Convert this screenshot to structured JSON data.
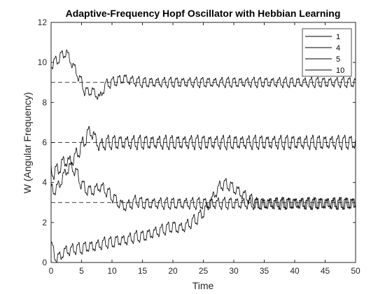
{
  "chart_data": {
    "type": "line",
    "title": "Adaptive-Frequency Hopf Oscillator with Hebbian Learning",
    "xlabel": "Time",
    "ylabel": "W (Angular Frequency)",
    "xlim": [
      0,
      50
    ],
    "ylim": [
      0,
      12
    ],
    "xticks": [
      "0",
      "5",
      "10",
      "15",
      "20",
      "25",
      "30",
      "35",
      "40",
      "45",
      "50"
    ],
    "yticks": [
      "0",
      "2",
      "4",
      "6",
      "8",
      "10",
      "12"
    ],
    "grid": false,
    "legend": {
      "placement": "top-right",
      "entries": [
        "1",
        "4",
        "5",
        "10"
      ]
    },
    "reference_lines": [
      {
        "y": 3,
        "style": "dashed"
      },
      {
        "y": 6,
        "style": "dashed"
      },
      {
        "y": 9,
        "style": "dashed"
      }
    ],
    "series": [
      {
        "name": "1",
        "color": "#000000",
        "oscillation": {
          "amplitude": 0.25,
          "period": 1.05
        },
        "x": [
          0,
          0.5,
          1,
          1.5,
          2,
          2.5,
          3,
          4,
          5,
          6,
          7,
          8,
          9,
          10,
          11,
          12,
          13,
          14,
          15,
          16,
          17,
          18,
          19,
          20,
          21,
          22,
          23,
          24,
          25,
          26,
          27,
          28,
          29,
          30,
          31,
          32,
          33,
          34,
          35,
          36,
          40,
          45,
          50
        ],
        "y": [
          0.9,
          0.4,
          0.2,
          0.3,
          0.5,
          0.6,
          0.6,
          0.7,
          0.7,
          0.8,
          0.8,
          0.9,
          1.0,
          1.0,
          1.1,
          1.1,
          1.2,
          1.3,
          1.3,
          1.4,
          1.5,
          1.6,
          1.7,
          1.8,
          1.7,
          1.8,
          2.0,
          2.2,
          2.5,
          2.9,
          3.5,
          3.9,
          3.9,
          3.7,
          3.5,
          3.3,
          3.1,
          2.9,
          2.9,
          2.95,
          2.95,
          2.95,
          2.95
        ]
      },
      {
        "name": "4",
        "color": "#000000",
        "oscillation": {
          "amplitude": 0.25,
          "period": 1.05
        },
        "x": [
          0,
          1,
          2,
          3,
          4,
          5,
          6,
          7,
          8,
          9,
          10,
          11,
          12,
          13,
          14,
          15,
          16,
          20,
          25,
          30,
          35,
          40,
          45,
          50
        ],
        "y": [
          3.6,
          3.7,
          4.3,
          4.8,
          4.6,
          3.9,
          3.6,
          3.6,
          3.8,
          3.6,
          3.3,
          3.0,
          2.8,
          2.9,
          3.1,
          2.95,
          2.95,
          2.95,
          2.95,
          2.95,
          2.95,
          2.95,
          2.95,
          2.95
        ]
      },
      {
        "name": "5",
        "color": "#000000",
        "oscillation": {
          "amplitude": 0.3,
          "period": 1.05
        },
        "x": [
          0,
          0.5,
          1,
          1.5,
          2,
          2.5,
          3,
          4,
          5,
          6,
          6.5,
          7,
          8,
          9,
          10,
          15,
          20,
          25,
          30,
          35,
          40,
          45,
          50
        ],
        "y": [
          4.6,
          4.5,
          4.6,
          4.8,
          5.0,
          5.1,
          5.0,
          5.3,
          5.8,
          6.4,
          6.6,
          6.3,
          5.8,
          6.0,
          6.0,
          6.0,
          6.0,
          6.0,
          6.0,
          6.0,
          6.0,
          6.0,
          6.0
        ]
      },
      {
        "name": "10",
        "color": "#000000",
        "oscillation": {
          "amplitude": 0.22,
          "period": 1.05
        },
        "x": [
          0,
          0.5,
          1,
          1.5,
          2,
          2.5,
          3,
          3.5,
          4,
          4.5,
          5,
          5.5,
          6,
          6.5,
          7,
          7.5,
          8,
          8.5,
          9,
          10,
          11,
          12,
          13,
          15,
          20,
          25,
          30,
          35,
          40,
          45,
          50
        ],
        "y": [
          9.9,
          10.0,
          10.1,
          10.3,
          10.4,
          10.5,
          10.2,
          9.9,
          9.6,
          9.3,
          9.0,
          8.6,
          8.5,
          8.6,
          8.5,
          8.4,
          8.2,
          8.6,
          8.9,
          9.0,
          9.1,
          9.2,
          9.1,
          9.0,
          9.0,
          9.0,
          9.0,
          9.0,
          9.0,
          9.0,
          9.0
        ]
      }
    ]
  }
}
